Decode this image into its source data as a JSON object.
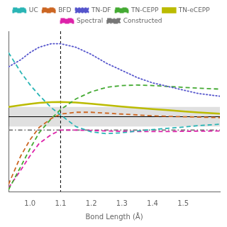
{
  "chart_data": {
    "type": "line",
    "x_label": "Bond Length (Å)",
    "x": [
      0.93,
      0.97,
      1.0,
      1.03,
      1.07,
      1.1,
      1.15,
      1.2,
      1.25,
      1.3,
      1.35,
      1.4,
      1.45,
      1.5,
      1.55,
      1.62
    ],
    "series": [
      {
        "name": "UC",
        "color": "#2ab5b5",
        "line_style": "dashed",
        "values": [
          0.36,
          0.25,
          0.18,
          0.12,
          0.05,
          0.01,
          -0.055,
          -0.085,
          -0.095,
          -0.09,
          -0.08,
          -0.072,
          -0.065,
          -0.058,
          -0.05,
          -0.042
        ]
      },
      {
        "name": "BFD",
        "color": "#cc6622",
        "line_style": "dashed",
        "values": [
          -0.38,
          -0.22,
          -0.13,
          -0.06,
          -0.01,
          0.015,
          0.025,
          0.025,
          0.02,
          0.015,
          0.01,
          0.005,
          0.002,
          0.0,
          -0.002,
          -0.005
        ]
      },
      {
        "name": "TN-DF",
        "color": "#5555cc",
        "line_style": "dotted",
        "values": [
          0.28,
          0.32,
          0.36,
          0.39,
          0.41,
          0.41,
          0.39,
          0.35,
          0.3,
          0.26,
          0.22,
          0.19,
          0.17,
          0.15,
          0.13,
          0.115
        ]
      },
      {
        "name": "TN-CEPP",
        "color": "#44aa33",
        "line_style": "dashed",
        "values": [
          -0.41,
          -0.28,
          -0.18,
          -0.09,
          -0.01,
          0.04,
          0.1,
          0.14,
          0.165,
          0.175,
          0.178,
          0.175,
          0.17,
          0.165,
          0.16,
          0.155
        ]
      },
      {
        "name": "TN-eCEPP",
        "color": "#bbbb00",
        "line_style": "solid",
        "values": [
          0.055,
          0.065,
          0.072,
          0.078,
          0.082,
          0.083,
          0.08,
          0.073,
          0.065,
          0.057,
          0.05,
          0.043,
          0.037,
          0.03,
          0.024,
          0.017
        ]
      },
      {
        "name": "Spectral",
        "color": "#dd22aa",
        "line_style": "dashed",
        "values": [
          -0.4,
          -0.3,
          -0.22,
          -0.15,
          -0.1,
          -0.075,
          -0.075,
          -0.077,
          -0.08,
          -0.082,
          -0.083,
          -0.083,
          -0.083,
          -0.082,
          -0.081,
          -0.08
        ]
      },
      {
        "name": "Constructed",
        "color": "#777777",
        "line_style": "dashdot",
        "values": [
          -0.075,
          -0.075,
          -0.075,
          -0.075,
          -0.075,
          -0.075,
          -0.075,
          -0.075,
          -0.075,
          -0.075,
          -0.075,
          -0.075,
          -0.075,
          -0.075,
          -0.075,
          -0.075
        ]
      }
    ],
    "xlim": [
      0.93,
      1.62
    ],
    "xticks": [
      {
        "value": 1.0,
        "label": "1.0"
      },
      1.1,
      1.2,
      1.3,
      1.4,
      1.5
    ],
    "ylim": [
      -0.42,
      0.48
    ],
    "tick_labels": "x",
    "hlines": [
      0
    ],
    "vlines": [
      1.1
    ],
    "shaded_band": [
      -0.055,
      0.055
    ],
    "grid": false,
    "legend": "top"
  }
}
